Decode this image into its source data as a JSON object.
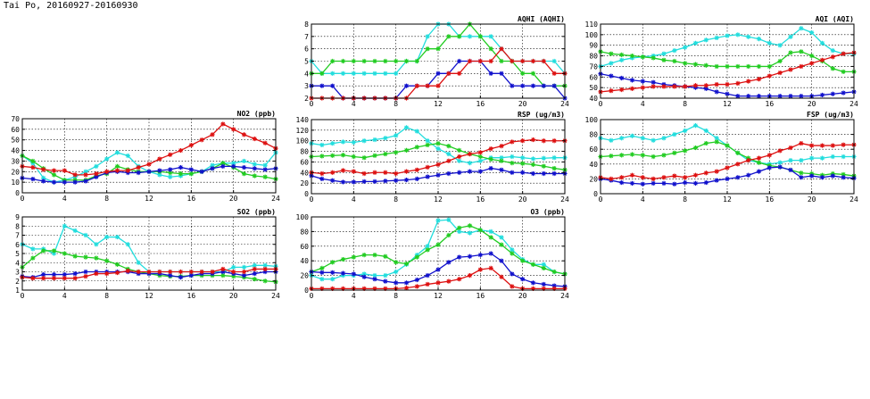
{
  "page": {
    "title": "Tai Po, 20160927-20160930"
  },
  "colors": {
    "cyan": "#22dddd",
    "green": "#22cc22",
    "blue": "#1111cc",
    "red": "#dd1111",
    "grid": "#000000"
  },
  "chart_data": [
    {
      "id": "no2",
      "type": "line",
      "title": "NO2 (ppb)",
      "x": [
        0,
        1,
        2,
        3,
        4,
        5,
        6,
        7,
        8,
        9,
        10,
        11,
        12,
        13,
        14,
        15,
        16,
        17,
        18,
        19,
        20,
        21,
        22,
        23,
        24
      ],
      "xticks": [
        0,
        4,
        8,
        12,
        16,
        20,
        24
      ],
      "xlim": [
        0,
        24
      ],
      "ylim": [
        0,
        70
      ],
      "yticks": [
        0,
        10,
        20,
        30,
        40,
        50,
        60,
        70
      ],
      "series": [
        {
          "color": "cyan",
          "values": [
            35,
            28,
            14,
            10,
            12,
            15,
            20,
            25,
            32,
            38,
            35,
            25,
            20,
            17,
            15,
            16,
            18,
            20,
            26,
            28,
            28,
            30,
            27,
            26,
            38
          ]
        },
        {
          "color": "green",
          "values": [
            35,
            30,
            23,
            17,
            12,
            12,
            12,
            16,
            18,
            25,
            22,
            20,
            20,
            20,
            19,
            18,
            18,
            20,
            23,
            28,
            24,
            18,
            16,
            15,
            13
          ]
        },
        {
          "color": "blue",
          "values": [
            14,
            13,
            11,
            10,
            10,
            10,
            11,
            15,
            19,
            20,
            19,
            19,
            20,
            21,
            22,
            24,
            22,
            20,
            23,
            25,
            25,
            24,
            23,
            22,
            23
          ]
        },
        {
          "color": "red",
          "values": [
            25,
            24,
            22,
            21,
            21,
            17,
            17,
            18,
            20,
            21,
            21,
            24,
            27,
            32,
            36,
            40,
            45,
            50,
            55,
            65,
            60,
            55,
            51,
            47,
            42
          ]
        }
      ]
    },
    {
      "id": "so2",
      "type": "line",
      "title": "SO2 (ppb)",
      "x": [
        0,
        1,
        2,
        3,
        4,
        5,
        6,
        7,
        8,
        9,
        10,
        11,
        12,
        13,
        14,
        15,
        16,
        17,
        18,
        19,
        20,
        21,
        22,
        23,
        24
      ],
      "xticks": [
        0,
        4,
        8,
        12,
        16,
        20,
        24
      ],
      "xlim": [
        0,
        24
      ],
      "ylim": [
        1,
        9
      ],
      "yticks": [
        1,
        2,
        3,
        4,
        5,
        6,
        7,
        8,
        9
      ],
      "series": [
        {
          "color": "cyan",
          "values": [
            6,
            5.5,
            5.5,
            5,
            8,
            7.5,
            7,
            6,
            6.8,
            6.8,
            6,
            4,
            3,
            3,
            3,
            3,
            3,
            3,
            3,
            3,
            3.5,
            3.5,
            3.7,
            3.7,
            3.6
          ]
        },
        {
          "color": "green",
          "values": [
            3.5,
            4.5,
            5.3,
            5.3,
            5,
            4.7,
            4.6,
            4.5,
            4.2,
            3.8,
            3.3,
            3,
            2.8,
            2.6,
            2.5,
            2.5,
            2.6,
            2.6,
            2.6,
            2.6,
            2.5,
            2.4,
            2.2,
            2,
            1.9
          ]
        },
        {
          "color": "blue",
          "values": [
            2.5,
            2.4,
            2.7,
            2.7,
            2.7,
            2.8,
            3,
            3,
            3,
            3,
            3,
            2.8,
            2.8,
            2.8,
            2.6,
            2.4,
            2.6,
            2.8,
            2.8,
            3,
            2.8,
            2.6,
            2.8,
            3,
            3
          ]
        },
        {
          "color": "red",
          "values": [
            2.4,
            2.3,
            2.3,
            2.3,
            2.3,
            2.3,
            2.5,
            2.8,
            2.8,
            2.9,
            3.1,
            3,
            3,
            3,
            3,
            3,
            3,
            3,
            3,
            3.3,
            3,
            3,
            3.3,
            3.3,
            3.3
          ]
        }
      ]
    },
    {
      "id": "aqhi",
      "type": "line",
      "title": "AQHI (AQHI)",
      "x": [
        0,
        1,
        2,
        3,
        4,
        5,
        6,
        7,
        8,
        9,
        10,
        11,
        12,
        13,
        14,
        15,
        16,
        17,
        18,
        19,
        20,
        21,
        22,
        23,
        24
      ],
      "xticks": [
        0,
        4,
        8,
        12,
        16,
        20,
        24
      ],
      "xlim": [
        0,
        24
      ],
      "ylim": [
        2,
        8
      ],
      "yticks": [
        2,
        3,
        4,
        5,
        6,
        7,
        8
      ],
      "series": [
        {
          "color": "cyan",
          "values": [
            5,
            4,
            4,
            4,
            4,
            4,
            4,
            4,
            4,
            5,
            5,
            7,
            8,
            8,
            7,
            7,
            7,
            7,
            6,
            5,
            5,
            5,
            5,
            5,
            4
          ]
        },
        {
          "color": "green",
          "values": [
            4,
            4,
            5,
            5,
            5,
            5,
            5,
            5,
            5,
            5,
            5,
            6,
            6,
            7,
            7,
            8,
            7,
            6,
            5,
            5,
            4,
            4,
            3,
            3,
            3
          ]
        },
        {
          "color": "blue",
          "values": [
            3,
            3,
            3,
            2,
            2,
            2,
            2,
            2,
            2,
            3,
            3,
            3,
            4,
            4,
            5,
            5,
            5,
            4,
            4,
            3,
            3,
            3,
            3,
            3,
            2
          ]
        },
        {
          "color": "red",
          "values": [
            2,
            2,
            2,
            2,
            2,
            2,
            2,
            2,
            2,
            2,
            3,
            3,
            3,
            4,
            4,
            5,
            5,
            5,
            6,
            5,
            5,
            5,
            5,
            4,
            4
          ]
        }
      ]
    },
    {
      "id": "rsp",
      "type": "line",
      "title": "RSP (ug/m3)",
      "x": [
        0,
        1,
        2,
        3,
        4,
        5,
        6,
        7,
        8,
        9,
        10,
        11,
        12,
        13,
        14,
        15,
        16,
        17,
        18,
        19,
        20,
        21,
        22,
        23,
        24
      ],
      "xticks": [
        0,
        4,
        8,
        12,
        16,
        20,
        24
      ],
      "xlim": [
        0,
        24
      ],
      "ylim": [
        0,
        140
      ],
      "yticks": [
        0,
        20,
        40,
        60,
        80,
        100,
        120,
        140
      ],
      "series": [
        {
          "color": "cyan",
          "values": [
            95,
            92,
            95,
            98,
            97,
            100,
            102,
            105,
            110,
            125,
            118,
            100,
            85,
            75,
            62,
            58,
            62,
            68,
            68,
            70,
            68,
            66,
            67,
            68,
            68
          ]
        },
        {
          "color": "green",
          "values": [
            70,
            71,
            72,
            73,
            70,
            68,
            72,
            75,
            78,
            82,
            88,
            92,
            95,
            90,
            82,
            75,
            70,
            65,
            62,
            58,
            57,
            55,
            52,
            48,
            45
          ]
        },
        {
          "color": "blue",
          "values": [
            34,
            28,
            25,
            22,
            22,
            23,
            23,
            24,
            25,
            26,
            28,
            32,
            35,
            38,
            40,
            42,
            42,
            48,
            45,
            40,
            40,
            38,
            38,
            38,
            38
          ]
        },
        {
          "color": "red",
          "values": [
            40,
            38,
            40,
            44,
            42,
            38,
            40,
            40,
            38,
            42,
            45,
            50,
            55,
            62,
            70,
            75,
            78,
            85,
            90,
            98,
            100,
            102,
            100,
            100,
            100
          ]
        }
      ]
    },
    {
      "id": "o3",
      "type": "line",
      "title": "O3 (ppb)",
      "x": [
        0,
        1,
        2,
        3,
        4,
        5,
        6,
        7,
        8,
        9,
        10,
        11,
        12,
        13,
        14,
        15,
        16,
        17,
        18,
        19,
        20,
        21,
        22,
        23,
        24
      ],
      "xticks": [
        0,
        4,
        8,
        12,
        16,
        20,
        24
      ],
      "xlim": [
        0,
        24
      ],
      "ylim": [
        0,
        100
      ],
      "yticks": [
        0,
        20,
        40,
        60,
        80,
        100
      ],
      "series": [
        {
          "color": "cyan",
          "values": [
            20,
            15,
            15,
            20,
            20,
            22,
            20,
            20,
            25,
            35,
            48,
            60,
            95,
            96,
            80,
            78,
            82,
            80,
            72,
            55,
            42,
            35,
            35,
            25,
            22
          ]
        },
        {
          "color": "green",
          "values": [
            25,
            30,
            38,
            42,
            45,
            48,
            48,
            46,
            38,
            36,
            45,
            55,
            62,
            75,
            85,
            88,
            82,
            72,
            62,
            50,
            40,
            35,
            30,
            25,
            22
          ]
        },
        {
          "color": "blue",
          "values": [
            25,
            24,
            24,
            23,
            22,
            18,
            15,
            12,
            10,
            10,
            14,
            20,
            28,
            38,
            45,
            46,
            48,
            50,
            40,
            22,
            15,
            10,
            8,
            6,
            5
          ]
        },
        {
          "color": "red",
          "values": [
            2,
            2,
            2,
            2,
            2,
            2,
            2,
            2,
            2,
            3,
            5,
            8,
            10,
            12,
            15,
            20,
            28,
            30,
            18,
            5,
            2,
            2,
            2,
            2,
            2
          ]
        }
      ]
    },
    {
      "id": "aqi",
      "type": "line",
      "title": "AQI (AQI)",
      "x": [
        0,
        1,
        2,
        3,
        4,
        5,
        6,
        7,
        8,
        9,
        10,
        11,
        12,
        13,
        14,
        15,
        16,
        17,
        18,
        19,
        20,
        21,
        22,
        23,
        24
      ],
      "xticks": [
        0,
        4,
        8,
        12,
        16,
        20,
        24
      ],
      "xlim": [
        0,
        24
      ],
      "ylim": [
        40,
        110
      ],
      "yticks": [
        40,
        50,
        60,
        70,
        80,
        90,
        100,
        110
      ],
      "series": [
        {
          "color": "cyan",
          "values": [
            70,
            73,
            76,
            78,
            79,
            80,
            82,
            85,
            88,
            92,
            95,
            97,
            99,
            100,
            98,
            96,
            92,
            90,
            98,
            106,
            102,
            92,
            85,
            82,
            82
          ]
        },
        {
          "color": "green",
          "values": [
            84,
            82,
            81,
            80,
            79,
            78,
            76,
            75,
            73,
            72,
            71,
            70,
            70,
            70,
            70,
            70,
            70,
            75,
            83,
            84,
            80,
            75,
            68,
            65,
            65
          ]
        },
        {
          "color": "blue",
          "values": [
            63,
            61,
            59,
            57,
            56,
            55,
            53,
            52,
            51,
            50,
            49,
            46,
            44,
            42,
            42,
            42,
            42,
            42,
            42,
            42,
            42,
            43,
            44,
            45,
            46
          ]
        },
        {
          "color": "red",
          "values": [
            46,
            47,
            48,
            49,
            50,
            51,
            51,
            51,
            51,
            52,
            52,
            53,
            53,
            54,
            56,
            58,
            61,
            64,
            67,
            70,
            73,
            76,
            79,
            82,
            83
          ]
        }
      ]
    },
    {
      "id": "fsp",
      "type": "line",
      "title": "FSP (ug/m3)",
      "x": [
        0,
        1,
        2,
        3,
        4,
        5,
        6,
        7,
        8,
        9,
        10,
        11,
        12,
        13,
        14,
        15,
        16,
        17,
        18,
        19,
        20,
        21,
        22,
        23,
        24
      ],
      "xticks": [
        0,
        4,
        8,
        12,
        16,
        20,
        24
      ],
      "xlim": [
        0,
        24
      ],
      "ylim": [
        0,
        100
      ],
      "yticks": [
        0,
        20,
        40,
        60,
        80,
        100
      ],
      "series": [
        {
          "color": "cyan",
          "values": [
            75,
            72,
            75,
            78,
            75,
            72,
            75,
            80,
            85,
            92,
            85,
            75,
            65,
            55,
            45,
            42,
            40,
            42,
            45,
            45,
            48,
            48,
            50,
            50,
            50
          ]
        },
        {
          "color": "green",
          "values": [
            50,
            51,
            52,
            53,
            52,
            50,
            52,
            55,
            58,
            62,
            68,
            70,
            65,
            55,
            48,
            42,
            38,
            36,
            32,
            28,
            27,
            25,
            27,
            26,
            24
          ]
        },
        {
          "color": "blue",
          "values": [
            20,
            18,
            15,
            14,
            13,
            14,
            14,
            13,
            15,
            14,
            15,
            18,
            20,
            22,
            25,
            30,
            35,
            36,
            32,
            22,
            24,
            22,
            24,
            22,
            21
          ]
        },
        {
          "color": "red",
          "values": [
            22,
            20,
            22,
            25,
            22,
            20,
            22,
            24,
            22,
            25,
            28,
            30,
            35,
            40,
            45,
            48,
            52,
            58,
            62,
            68,
            65,
            65,
            65,
            66,
            66
          ]
        }
      ]
    }
  ]
}
